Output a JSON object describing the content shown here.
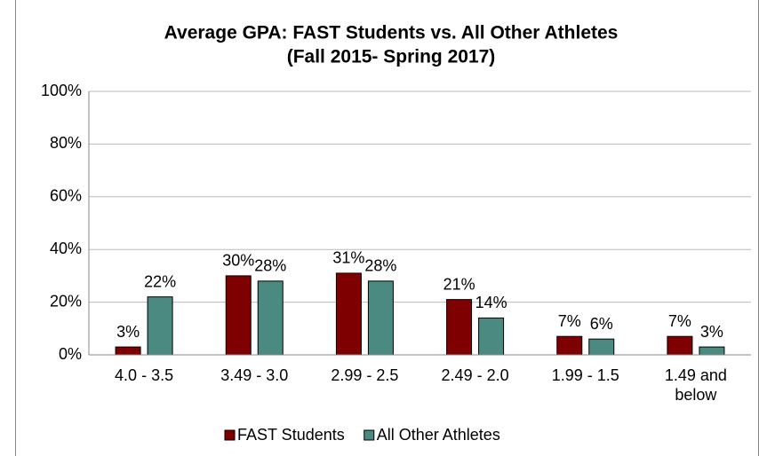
{
  "chart_data": {
    "type": "bar",
    "title": "Average GPA: FAST Students vs. All Other Athletes",
    "subtitle": "(Fall 2015- Spring 2017)",
    "categories": [
      "4.0 - 3.5",
      "3.49 - 3.0",
      "2.99 - 2.5",
      "2.49 - 2.0",
      "1.99 - 1.5",
      "1.49 and below"
    ],
    "series": [
      {
        "name": "FAST Students",
        "color": "#7f0000",
        "values": [
          3,
          30,
          31,
          21,
          7,
          7
        ],
        "value_labels": [
          "3%",
          "30%",
          "31%",
          "21%",
          "7%",
          "7%"
        ]
      },
      {
        "name": "All Other Athletes",
        "color": "#4a8a80",
        "values": [
          22,
          28,
          28,
          14,
          6,
          3
        ],
        "value_labels": [
          "22%",
          "28%",
          "28%",
          "14%",
          "6%",
          "3%"
        ]
      }
    ],
    "ylim": [
      0,
      100
    ],
    "yticks": [
      {
        "value": 0,
        "label": "0%"
      },
      {
        "value": 20,
        "label": "20%"
      },
      {
        "value": 40,
        "label": "40%"
      },
      {
        "value": 60,
        "label": "60%"
      },
      {
        "value": 80,
        "label": "80%"
      },
      {
        "value": 100,
        "label": "100%"
      }
    ],
    "grid": true,
    "legend": "bottom"
  }
}
